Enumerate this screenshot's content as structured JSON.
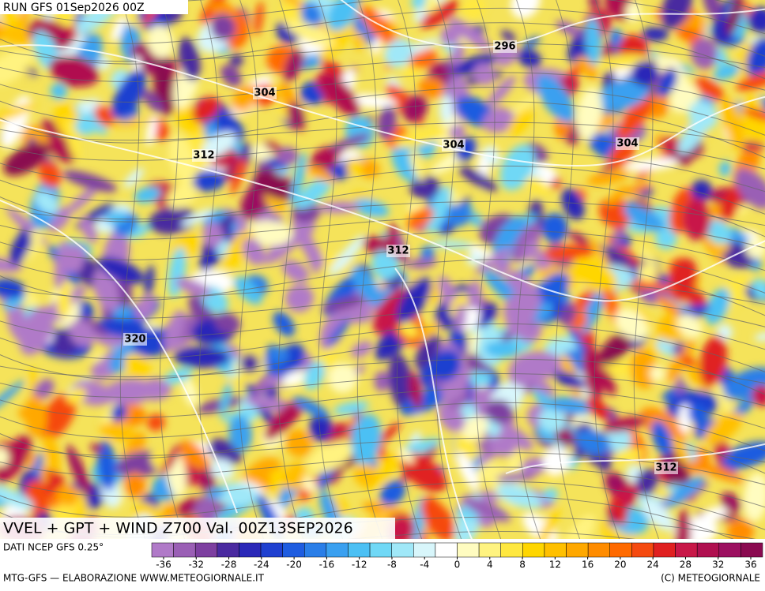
{
  "header": {
    "run": "RUN GFS 01Sep2026 00Z"
  },
  "map": {
    "contour_labels": [
      296,
      304,
      304,
      304,
      312,
      312,
      312,
      320
    ],
    "title": "VVEL + GPT + WIND Z700 Val. 00Z13SEP2026"
  },
  "colorbar": {
    "source": "DATI NCEP GFS 0.25°",
    "ticks": [
      -36,
      -32,
      -28,
      -24,
      -20,
      -16,
      -12,
      -8,
      -4,
      0,
      4,
      8,
      12,
      16,
      20,
      24,
      28,
      32,
      36
    ]
  },
  "footer": {
    "left": "MTG-GFS — ELABORAZIONE WWW.METEOGIORNALE.IT",
    "right": "(C) METEOGIORNALE"
  }
}
